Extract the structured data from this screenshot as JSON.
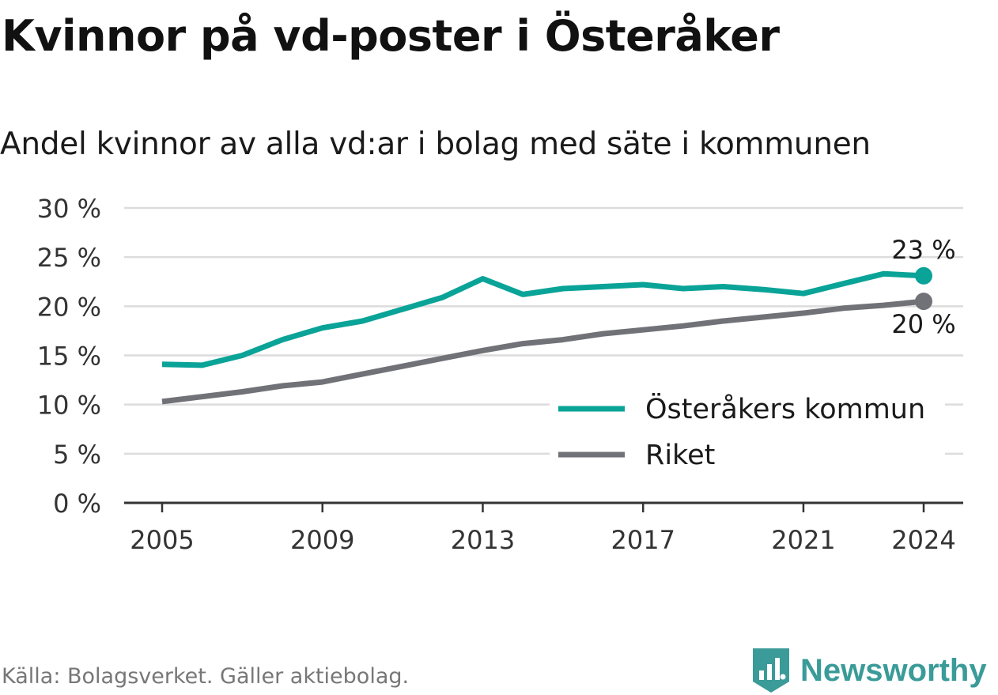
{
  "title": "Kvinnor på vd-poster i Österåker",
  "subtitle": "Andel kvinnor av alla vd:ar i bolag med säte i kommunen",
  "source": "Källa: Bolagsverket. Gäller aktiebolag.",
  "brand": {
    "name": "Newsworthy",
    "icon": "newsworthy-logo-icon",
    "color": "#3a9b98"
  },
  "chart_data": {
    "type": "line",
    "x": [
      2005,
      2006,
      2007,
      2008,
      2009,
      2010,
      2011,
      2012,
      2013,
      2014,
      2015,
      2016,
      2017,
      2018,
      2019,
      2020,
      2021,
      2022,
      2023,
      2024
    ],
    "xticks": [
      "2005",
      "2009",
      "2013",
      "2017",
      "2021",
      "2024"
    ],
    "yticks": [
      "0 %",
      "5 %",
      "10 %",
      "15 %",
      "20 %",
      "25 %",
      "30 %"
    ],
    "ylim": [
      0,
      30
    ],
    "grid": true,
    "legend_position": "bottom-right",
    "series": [
      {
        "name": "Österåkers kommun",
        "color": "#0aa398",
        "values": [
          14.1,
          14.0,
          15.0,
          16.6,
          17.8,
          18.5,
          19.7,
          20.9,
          22.8,
          21.2,
          21.8,
          22.0,
          22.2,
          21.8,
          22.0,
          21.7,
          21.3,
          22.3,
          23.3,
          23.1
        ],
        "end_label": "23 %"
      },
      {
        "name": "Riket",
        "color": "#717178",
        "values": [
          10.3,
          10.8,
          11.3,
          11.9,
          12.3,
          13.1,
          13.9,
          14.7,
          15.5,
          16.2,
          16.6,
          17.2,
          17.6,
          18.0,
          18.5,
          18.9,
          19.3,
          19.8,
          20.1,
          20.5
        ],
        "end_label": "20 %"
      }
    ]
  }
}
